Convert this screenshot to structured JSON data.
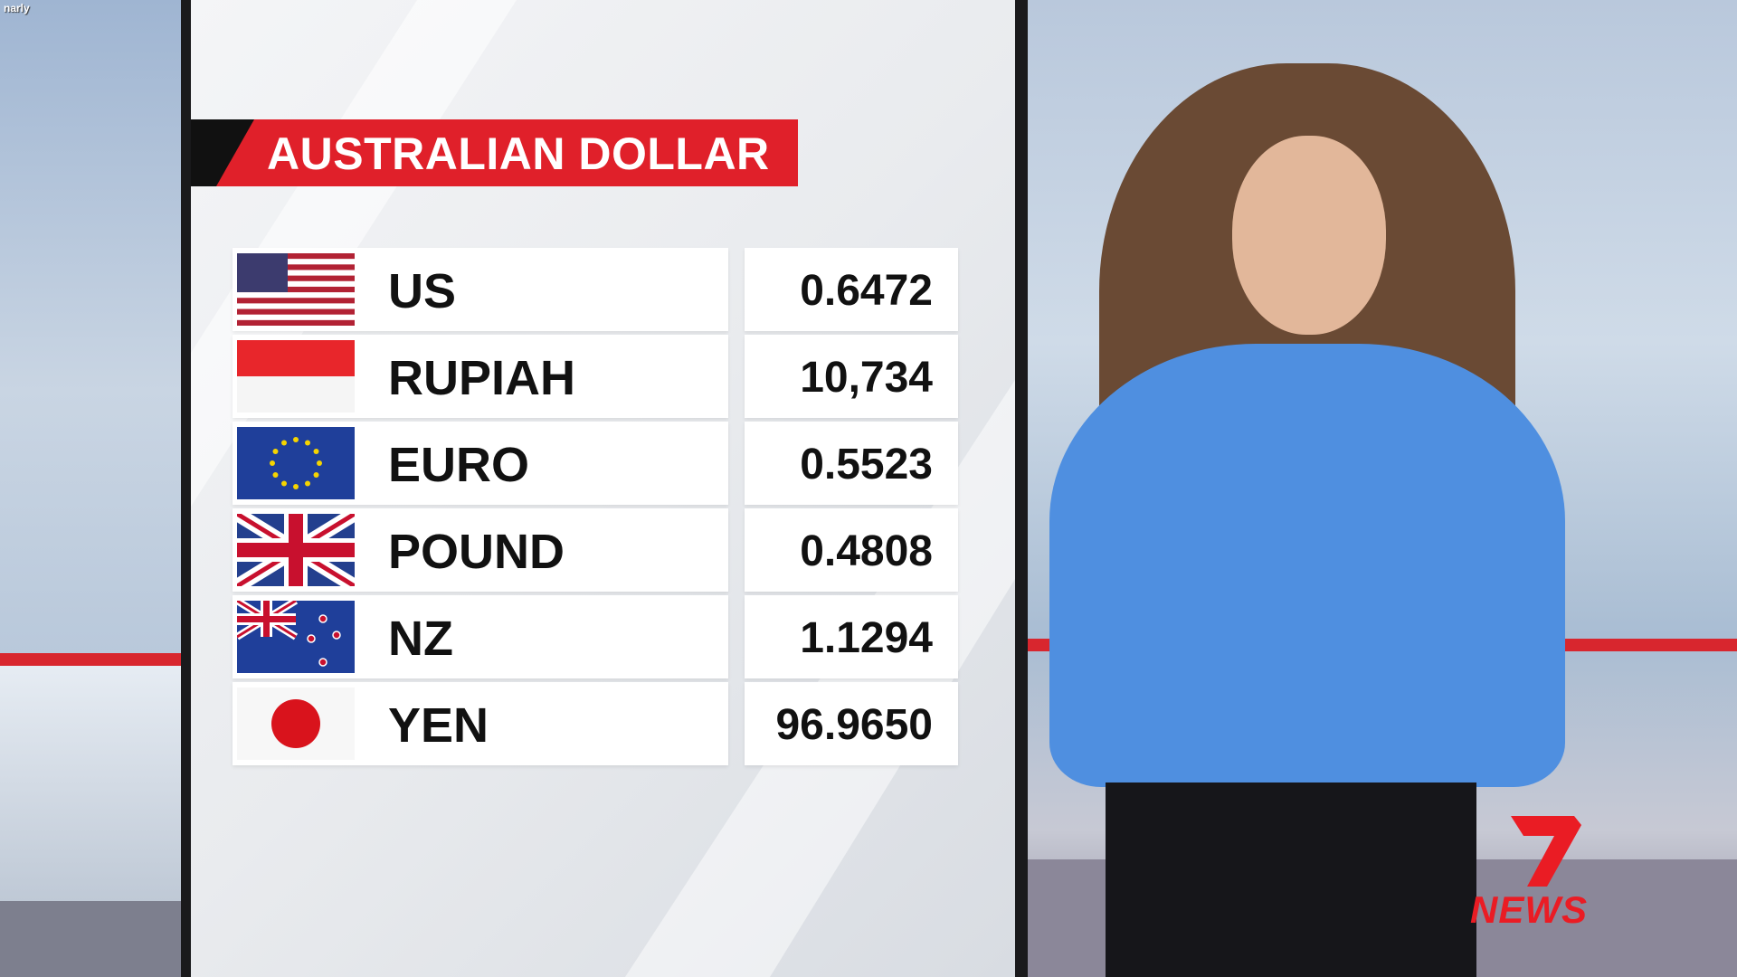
{
  "overlay": {
    "watermark": "narly"
  },
  "panel": {
    "title": "AUSTRALIAN DOLLAR",
    "rows": [
      {
        "flag": "us-flag",
        "currency": "US",
        "value": "0.6472"
      },
      {
        "flag": "indonesia-flag",
        "currency": "RUPIAH",
        "value": "10,734"
      },
      {
        "flag": "eu-flag",
        "currency": "EURO",
        "value": "0.5523"
      },
      {
        "flag": "uk-flag",
        "currency": "POUND",
        "value": "0.4808"
      },
      {
        "flag": "nz-flag",
        "currency": "NZ",
        "value": "1.1294"
      },
      {
        "flag": "japan-flag",
        "currency": "YEN",
        "value": "96.9650"
      }
    ]
  },
  "logo": {
    "text": "NEWS",
    "number": "7"
  },
  "colors": {
    "accent_red": "#e0202a",
    "presenter_top": "#4f8fe0"
  }
}
